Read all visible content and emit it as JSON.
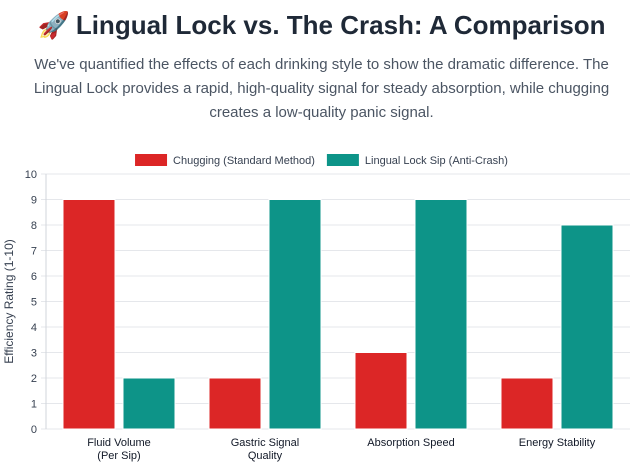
{
  "header": {
    "icon": "rocket-icon",
    "icon_glyph": "🚀",
    "title": "Lingual Lock vs. The Crash: A Comparison",
    "description": "We've quantified the effects of each drinking style to show the dramatic difference. The Lingual Lock provides a rapid, high-quality signal for steady absorption, while chugging creates a low-quality panic signal."
  },
  "chart_data": {
    "type": "bar",
    "title": "",
    "xlabel": "",
    "ylabel": "Efficiency Rating (1-10)",
    "ylim": [
      0,
      10
    ],
    "yticks": [
      0,
      1,
      2,
      3,
      4,
      5,
      6,
      7,
      8,
      9,
      10
    ],
    "grid": true,
    "legend_position": "top-center",
    "categories": [
      [
        "Fluid Volume",
        "(Per Sip)"
      ],
      [
        "Gastric Signal",
        "Quality"
      ],
      [
        "Absorption Speed"
      ],
      [
        "Energy Stability"
      ]
    ],
    "series": [
      {
        "name": "Chugging (Standard Method)",
        "color": "#dc2626",
        "values": [
          9,
          2,
          3,
          2
        ]
      },
      {
        "name": "Lingual Lock Sip (Anti-Crash)",
        "color": "#0d9488",
        "values": [
          2,
          9,
          9,
          8
        ]
      }
    ]
  }
}
